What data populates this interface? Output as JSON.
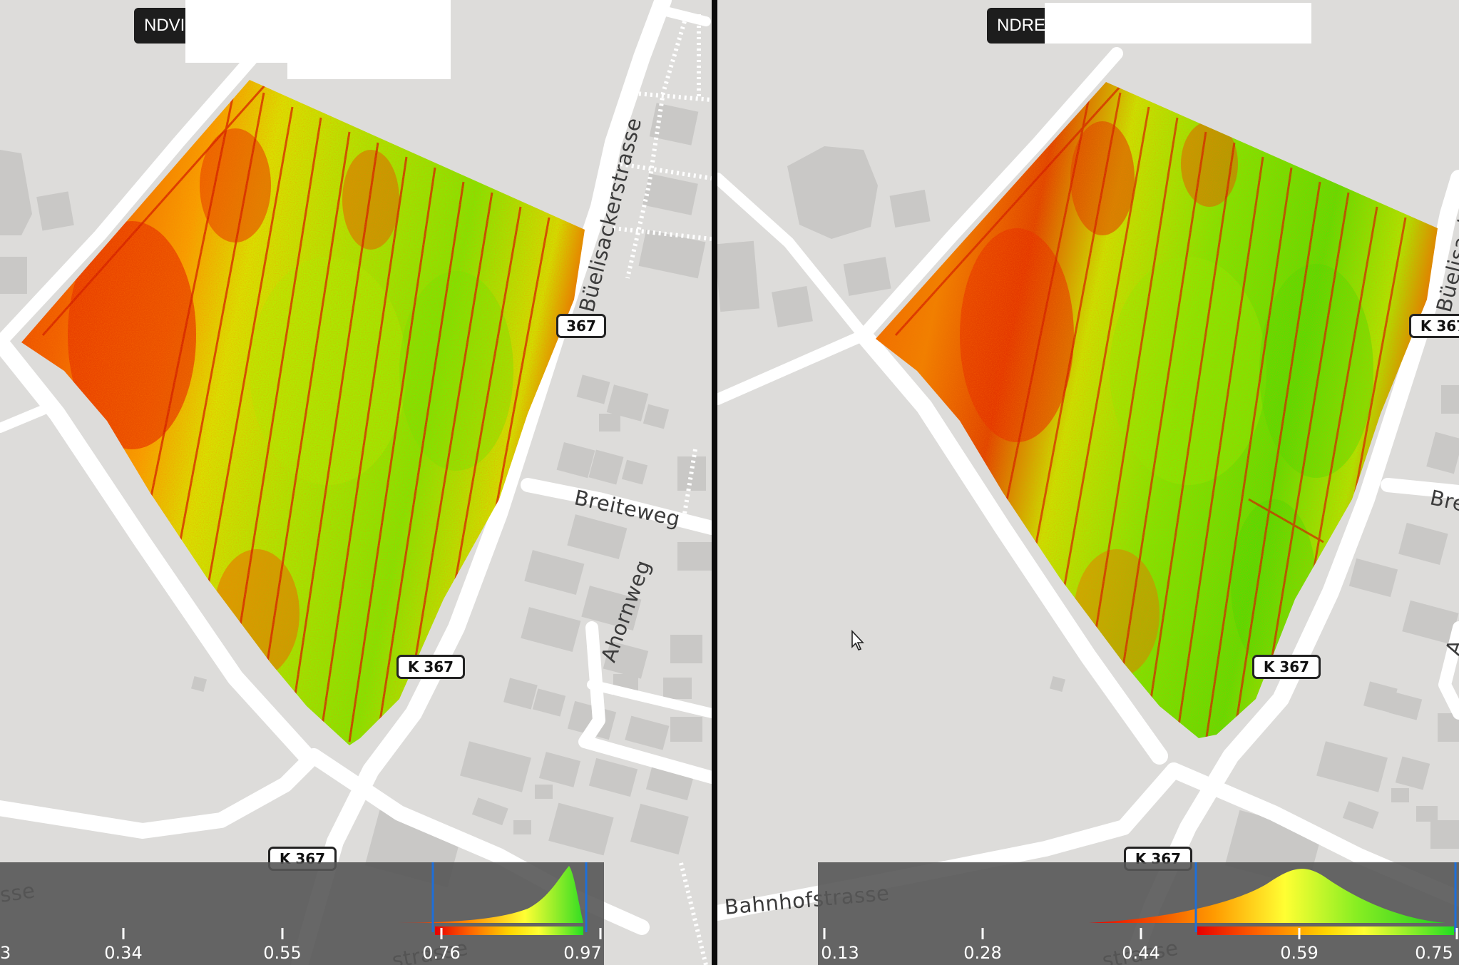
{
  "panels": [
    {
      "index": "NDVI",
      "road_labels": {
        "road_north": "Büelisackerstrasse",
        "road_east": "Breiteweg",
        "road_southeast": "Ahornweg",
        "road_bottom_left": "sse",
        "road_bottom_mid": "strasse"
      },
      "shields": [
        "367",
        "K 367",
        "K 367"
      ],
      "legend": {
        "ticks": [
          "3",
          "0.34",
          "0.55",
          "0.76",
          "0.97"
        ],
        "colormap": [
          "#e60000",
          "#ff6a00",
          "#ffd400",
          "#ffff33",
          "#7fff00",
          "#22dd22"
        ],
        "range_selected": [
          "0.76",
          "0.97"
        ]
      }
    },
    {
      "index": "NDRE",
      "road_labels": {
        "road_north": "Büelisacl",
        "road_east": "Bre",
        "road_southeast": "A",
        "road_bottom": "Bahnhofstrasse",
        "road_bottom_mid": "strasse"
      },
      "shields": [
        "K 367",
        "K 367",
        "K 367"
      ],
      "legend": {
        "ticks": [
          "0.13",
          "0.28",
          "0.44",
          "0.59",
          "0.75"
        ],
        "colormap": [
          "#e60000",
          "#ff6a00",
          "#ffd400",
          "#ffff33",
          "#7fff00",
          "#22dd22"
        ],
        "range_selected": [
          "0.44",
          "0.75"
        ]
      }
    }
  ],
  "colors": {
    "map_background": "#dddcda",
    "road": "#ffffff",
    "building": "#c9c8c6",
    "legend_background": "#565656",
    "range_marker": "#1e6fd9",
    "low_vegetation": "#e60000",
    "high_vegetation": "#22dd22"
  },
  "icons": [
    "mouse-cursor-icon"
  ]
}
